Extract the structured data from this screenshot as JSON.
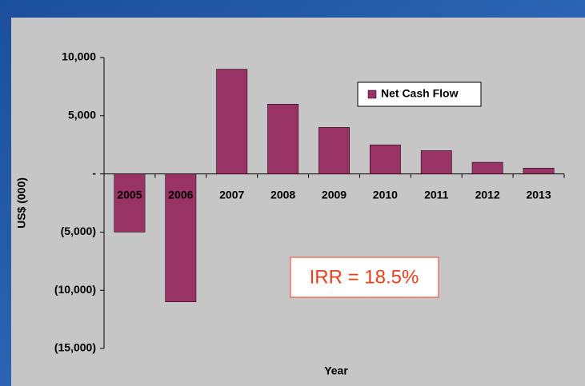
{
  "chart_data": {
    "type": "bar",
    "categories": [
      "2005",
      "2006",
      "2007",
      "2008",
      "2009",
      "2010",
      "2011",
      "2012",
      "2013"
    ],
    "series": [
      {
        "name": "Net Cash Flow",
        "color": "#993366",
        "values": [
          -5000,
          -11000,
          9000,
          6000,
          4000,
          2500,
          2000,
          1000,
          500
        ]
      }
    ],
    "ylim": [
      -15000,
      10000
    ],
    "yticks": [
      {
        "value": -15000,
        "label": "(15,000)"
      },
      {
        "value": -10000,
        "label": "(10,000)"
      },
      {
        "value": -5000,
        "label": "(5,000)"
      },
      {
        "value": 0,
        "label": "-"
      },
      {
        "value": 5000,
        "label": "5,000"
      },
      {
        "value": 10000,
        "label": "10,000"
      }
    ],
    "y_label": "US$ (000)",
    "x_label": "Year",
    "annotation": "IRR = 18.5%",
    "legend": "upper right",
    "grid": false
  }
}
